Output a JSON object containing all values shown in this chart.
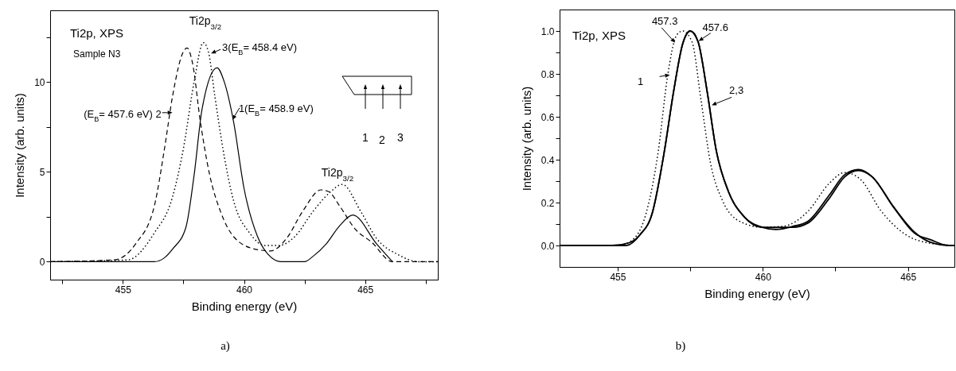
{
  "chart_data": [
    {
      "type": "line",
      "title": "Ti2p, XPS",
      "subtitle": "Sample N3",
      "xlabel": "Binding energy (eV)",
      "ylabel": "Intensity (arb. units)",
      "xlim": [
        452,
        468
      ],
      "ylim": [
        -1,
        14
      ],
      "xticks": [
        {
          "value": 452.5,
          "label": null
        },
        455,
        {
          "value": 457.5,
          "label": null
        },
        460,
        {
          "value": 462.5,
          "label": null
        },
        465,
        {
          "value": 467.5,
          "label": null
        }
      ],
      "yticks": [
        0,
        {
          "value": 2.5,
          "label": null
        },
        5,
        {
          "value": 7.5,
          "label": null
        },
        10,
        {
          "value": 12.5,
          "label": null
        }
      ],
      "grid": false,
      "series": [
        {
          "color": "#000000",
          "line_style": "solid",
          "x": [
            452,
            456.3,
            456.7,
            457.05,
            457.6,
            457.94,
            458.27,
            458.89,
            459.19,
            459.57,
            460.0,
            460.56,
            461.0,
            461.54,
            462.5,
            462.85,
            463.4,
            463.95,
            464.49,
            465.47,
            466.13
          ],
          "values": [
            0,
            0,
            0.2,
            0.7,
            1.9,
            4.8,
            8.5,
            10.8,
            10.0,
            7.8,
            4.1,
            1.4,
            0.4,
            0,
            0,
            0.3,
            1.0,
            2.0,
            2.6,
            1.0,
            0
          ]
        },
        {
          "color": "#000000",
          "line_style": "dashed",
          "x": [
            452,
            454.65,
            455.53,
            456.3,
            456.72,
            457.05,
            457.5,
            457.65,
            457.87,
            458.2,
            458.59,
            459.03,
            459.57,
            460.45,
            461.1,
            461.76,
            462.42,
            463.18,
            463.5,
            463.95,
            464.6,
            465.26,
            466.13,
            468
          ],
          "values": [
            0,
            0.1,
            1.0,
            3.1,
            6.3,
            9.2,
            11.7,
            11.9,
            11.1,
            7.8,
            4.8,
            2.8,
            1.4,
            0.7,
            0.6,
            1.3,
            2.8,
            4.0,
            3.9,
            3.1,
            1.8,
            1.1,
            0,
            0
          ]
        },
        {
          "color": "#000000",
          "line_style": "dotted",
          "x": [
            452,
            455.2,
            456.3,
            457.05,
            457.5,
            457.94,
            458.32,
            458.53,
            458.8,
            459.13,
            459.57,
            460.23,
            460.88,
            461.43,
            462.1,
            462.85,
            463.5,
            464.06,
            464.82,
            465.47,
            466.35,
            467.23,
            468
          ],
          "values": [
            0,
            0.1,
            1.6,
            3.6,
            6.3,
            10.0,
            12.2,
            11.7,
            9.2,
            6.3,
            3.4,
            1.6,
            0.9,
            0.9,
            1.4,
            2.8,
            3.8,
            4.3,
            2.8,
            1.3,
            0.4,
            0,
            0
          ]
        }
      ],
      "annotations": [
        "Ti2p$_{3/2}$",
        {
          "text": "3(E$_{B}$= 458.4 eV)",
          "x": 458.64,
          "y": 11.6
        },
        {
          "text": "(E$_{B}$= 457.6 eV) 2",
          "x": 457.05,
          "y": 8.3
        },
        {
          "text": "1(E$_{B}$= 458.9 eV)",
          "x": 459.52,
          "y": 7.9
        },
        "Ti2p$_{3/2}$",
        "1",
        "2",
        "3",
        "a)"
      ]
    },
    {
      "type": "line",
      "title": "Ti2p, XPS",
      "xlabel": "Binding energy (eV)",
      "ylabel": "Intensity (arb. units)",
      "xlim": [
        453,
        466.6
      ],
      "ylim": [
        -0.1,
        1.1
      ],
      "xticks": [
        455,
        {
          "value": 457.5,
          "label": null
        },
        460,
        {
          "value": 462.5,
          "label": null
        },
        465
      ],
      "yticks": [
        {
          "value": 0,
          "label": "0.0"
        },
        {
          "value": 0.1,
          "label": null
        },
        0.2,
        {
          "value": 0.3,
          "label": null
        },
        0.4,
        {
          "value": 0.5,
          "label": null
        },
        0.6,
        {
          "value": 0.7,
          "label": null
        },
        0.8,
        {
          "value": 0.9,
          "label": null
        },
        {
          "value": 1,
          "label": "1.0"
        }
      ],
      "grid": false,
      "series": [
        {
          "color": "#000000",
          "line_style": "dotted",
          "x": [
            453,
            455.0,
            455.45,
            455.98,
            456.4,
            456.72,
            457.03,
            457.24,
            457.56,
            457.87,
            458.19,
            458.61,
            459.24,
            459.98,
            460.72,
            461.56,
            462.29,
            462.82,
            463.35,
            464.08,
            464.93,
            465.77,
            466.6
          ],
          "values": [
            0,
            0,
            0.02,
            0.15,
            0.44,
            0.79,
            0.98,
            1.0,
            0.95,
            0.68,
            0.39,
            0.21,
            0.11,
            0.085,
            0.09,
            0.16,
            0.29,
            0.34,
            0.31,
            0.16,
            0.05,
            0.01,
            0
          ]
        },
        {
          "color": "#000000",
          "line_style": "solid",
          "x": [
            453,
            454.82,
            455.4,
            455.77,
            456.19,
            456.61,
            456.93,
            457.24,
            457.5,
            457.77,
            458.08,
            458.4,
            458.82,
            459.35,
            459.98,
            460.45,
            461.03,
            461.56,
            462.29,
            462.82,
            463.29,
            463.77,
            464.5,
            465.24,
            465.77,
            466.4,
            466.6
          ],
          "values": [
            0,
            0,
            0.013,
            0.05,
            0.15,
            0.44,
            0.72,
            0.94,
            1.0,
            0.95,
            0.72,
            0.44,
            0.25,
            0.135,
            0.085,
            0.075,
            0.089,
            0.113,
            0.235,
            0.33,
            0.354,
            0.32,
            0.18,
            0.056,
            0.027,
            0,
            0
          ]
        },
        {
          "color": "#000000",
          "line_style": "solid",
          "x": [
            453,
            455.3,
            455.77,
            456.19,
            456.61,
            456.93,
            457.24,
            457.5,
            457.77,
            458.08,
            458.4,
            458.82,
            459.35,
            459.98,
            460.45,
            461.03,
            461.56,
            462.29,
            462.82,
            463.29,
            463.77,
            464.5,
            465.24,
            465.77,
            466.4,
            466.6
          ],
          "values": [
            0,
            0,
            0.05,
            0.15,
            0.44,
            0.72,
            0.94,
            1.0,
            0.95,
            0.72,
            0.44,
            0.25,
            0.135,
            0.085,
            0.085,
            0.085,
            0.105,
            0.22,
            0.32,
            0.35,
            0.32,
            0.18,
            0.06,
            0.015,
            0,
            0
          ]
        }
      ],
      "annotations": [
        {
          "text": "457.3",
          "x": 456.98,
          "y": 0.945
        },
        {
          "text": "457.6",
          "x": 457.79,
          "y": 0.953
        },
        {
          "text": "1",
          "x": 456.8,
          "y": 0.795
        },
        {
          "text": "2,3",
          "x": 458.24,
          "y": 0.654
        },
        "b)"
      ]
    }
  ]
}
